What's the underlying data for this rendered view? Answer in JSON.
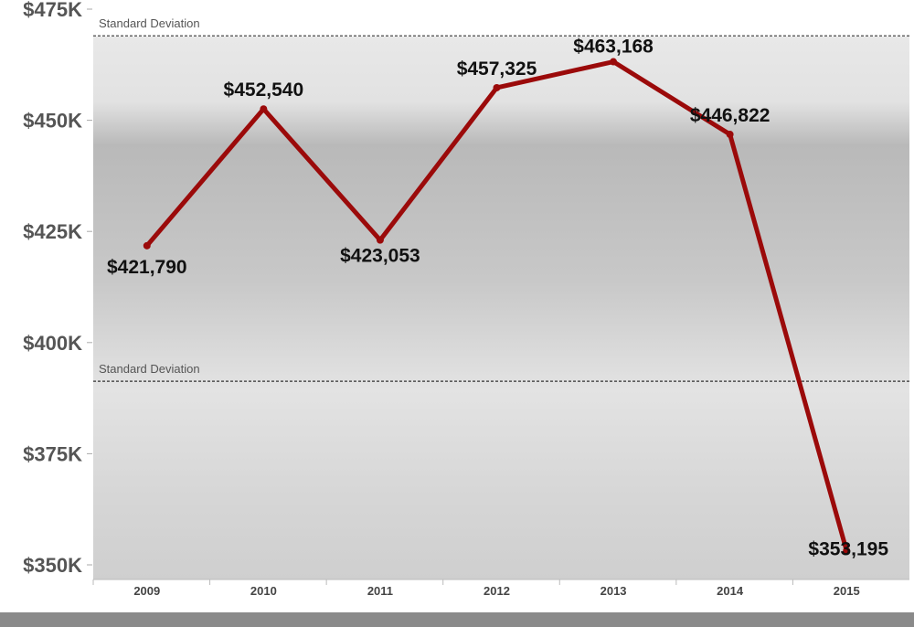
{
  "chart_data": {
    "type": "line",
    "categories": [
      "2009",
      "2010",
      "2011",
      "2012",
      "2013",
      "2014",
      "2015"
    ],
    "values": [
      421790,
      452540,
      423053,
      457325,
      463168,
      446822,
      353195
    ],
    "data_labels": [
      "$421,790",
      "$452,540",
      "$423,053",
      "$457,325",
      "$463,168",
      "$446,822",
      "$353,195"
    ],
    "ylim": [
      350000,
      475000
    ],
    "yticks": [
      350000,
      375000,
      400000,
      425000,
      450000,
      475000
    ],
    "ytick_labels": [
      "$350K",
      "$375K",
      "$400K",
      "$425K",
      "$450K",
      "$475K"
    ],
    "reference_lines": [
      {
        "label": "Standard Deviation",
        "value": 469000
      },
      {
        "label": "Standard Deviation",
        "value": 391300
      }
    ],
    "line_color": "#9b0a0a",
    "background": "parking lot photograph",
    "grid": false
  }
}
